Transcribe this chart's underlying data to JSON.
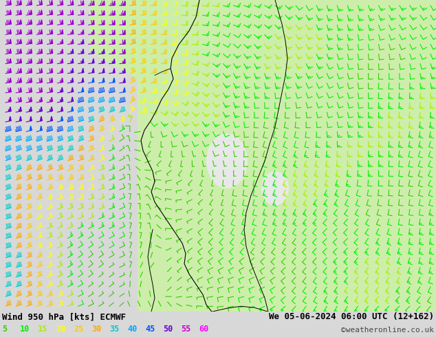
{
  "title_left": "Wind 950 hPa [kts] ECMWF",
  "title_right": "We 05-06-2024 06:00 UTC (12+162)",
  "credit": "©weatheronline.co.uk",
  "legend_values": [
    5,
    10,
    15,
    20,
    25,
    30,
    35,
    40,
    45,
    50,
    55,
    60
  ],
  "legend_colors": [
    "#33cc00",
    "#00ee00",
    "#aaee00",
    "#ffff00",
    "#ffcc00",
    "#ffaa00",
    "#00cccc",
    "#00aaff",
    "#0055ff",
    "#6600cc",
    "#9900cc",
    "#cc00cc"
  ],
  "fig_width": 6.34,
  "fig_height": 4.9,
  "dpi": 100,
  "background_color": "#d8d8d8",
  "land_color": "#cceeaa",
  "sea_color": "#e8e8e8",
  "map_bg": "#f0f0f0"
}
